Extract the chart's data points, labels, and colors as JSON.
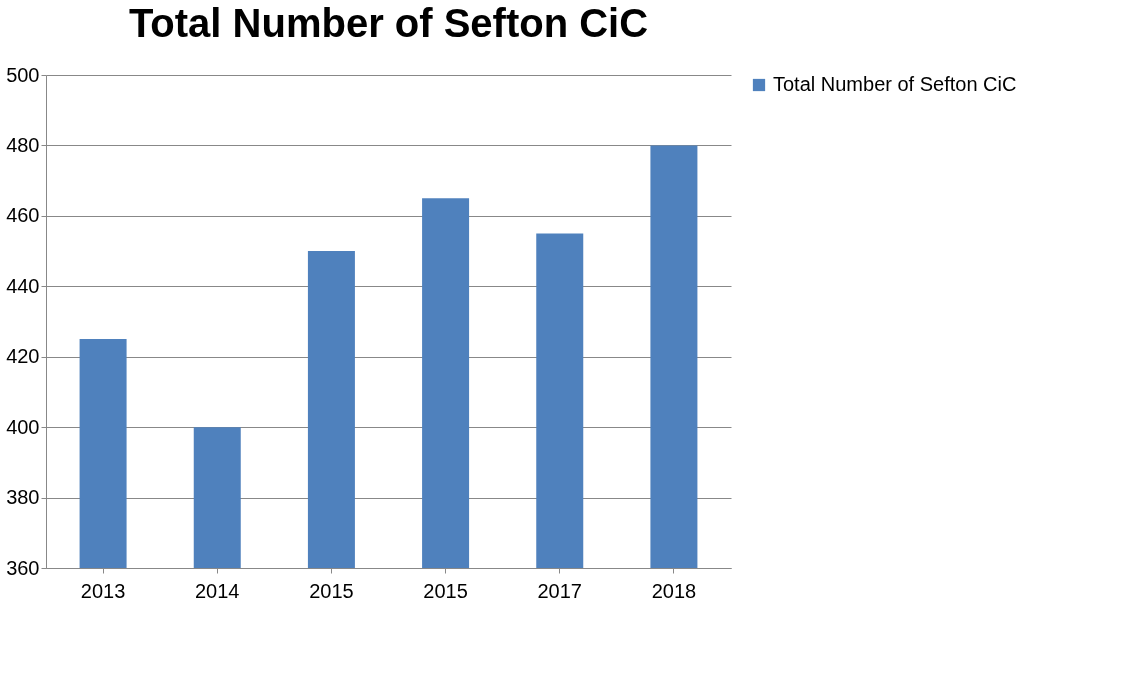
{
  "chart_data": {
    "type": "bar",
    "title": "Total Number of Sefton CiC",
    "categories": [
      "2013",
      "2014",
      "2015",
      "2015",
      "2017",
      "2018"
    ],
    "series": [
      {
        "name": "Total Number of Sefton CiC",
        "color": "#4f81bd",
        "values": [
          425,
          400,
          450,
          465,
          455,
          480
        ]
      }
    ],
    "ylim": [
      360,
      500
    ],
    "yticks": [
      360,
      380,
      400,
      420,
      440,
      460,
      480,
      500
    ],
    "grid": "y",
    "legend": "right"
  }
}
